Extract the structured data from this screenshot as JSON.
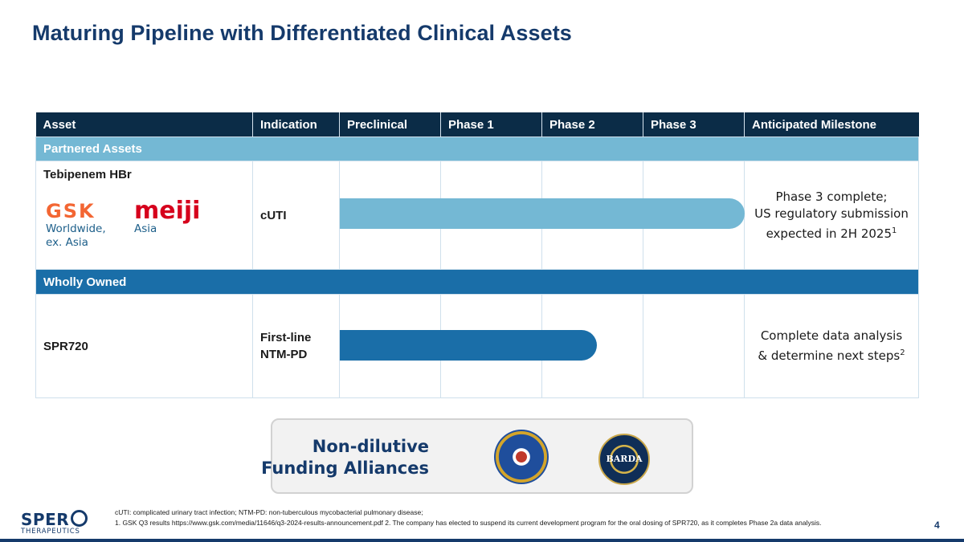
{
  "title": "Maturing Pipeline with Differentiated Clinical Assets",
  "table": {
    "headers": [
      "Asset",
      "Indication",
      "Preclinical",
      "Phase 1",
      "Phase 2",
      "Phase 3",
      "Anticipated Milestone"
    ],
    "sections": [
      {
        "label": "Partnered Assets",
        "asset": "Tebipenem HBr",
        "partners": [
          {
            "logo": "GSK",
            "region_line1": "Worldwide,",
            "region_line2": "ex. Asia",
            "color": "#f36633"
          },
          {
            "logo": "meiji",
            "region_line1": "Asia",
            "color": "#d6001c"
          }
        ],
        "indication_line1": "cUTI",
        "progress_stage": "Phase 3",
        "progress_fraction": 1.0,
        "bar_color": "#74b8d4",
        "milestone_line1": "Phase 3 complete;",
        "milestone_line2": "US regulatory submission",
        "milestone_line3": "expected in 2H 2025",
        "milestone_sup": "1"
      },
      {
        "label": "Wholly Owned",
        "asset": "SPR720",
        "indication_line1": "First-line",
        "indication_line2": "NTM-PD",
        "progress_stage": "Phase 2",
        "progress_fraction": 0.5,
        "bar_color": "#1a6ea8",
        "milestone_line1": "Complete data analysis",
        "milestone_line2": "& determine next steps",
        "milestone_sup": "2"
      }
    ]
  },
  "funding": {
    "line1": "Non-dilutive",
    "line2": "Funding Alliances",
    "seals": [
      "dtra-seal-icon",
      "barda-seal-icon"
    ],
    "barda_text": "BARDA"
  },
  "logo": {
    "name": "SPER",
    "sub": "THERAPEUTICS"
  },
  "footnotes": {
    "line1": "cUTI: complicated urinary tract infection; NTM-PD: non-tuberculous mycobacterial pulmonary disease;",
    "line2": "1. GSK Q3 results https://www.gsk.com/media/11646/q3-2024-results-announcement.pdf  2. The company has elected to suspend its current development program for the oral dosing of SPR720, as it completes Phase 2a data analysis."
  },
  "page_number": "4",
  "colors": {
    "title": "#153a6b",
    "header_bg": "#0b2c47",
    "partnered": "#74b8d4",
    "owned": "#1a6ea8"
  }
}
